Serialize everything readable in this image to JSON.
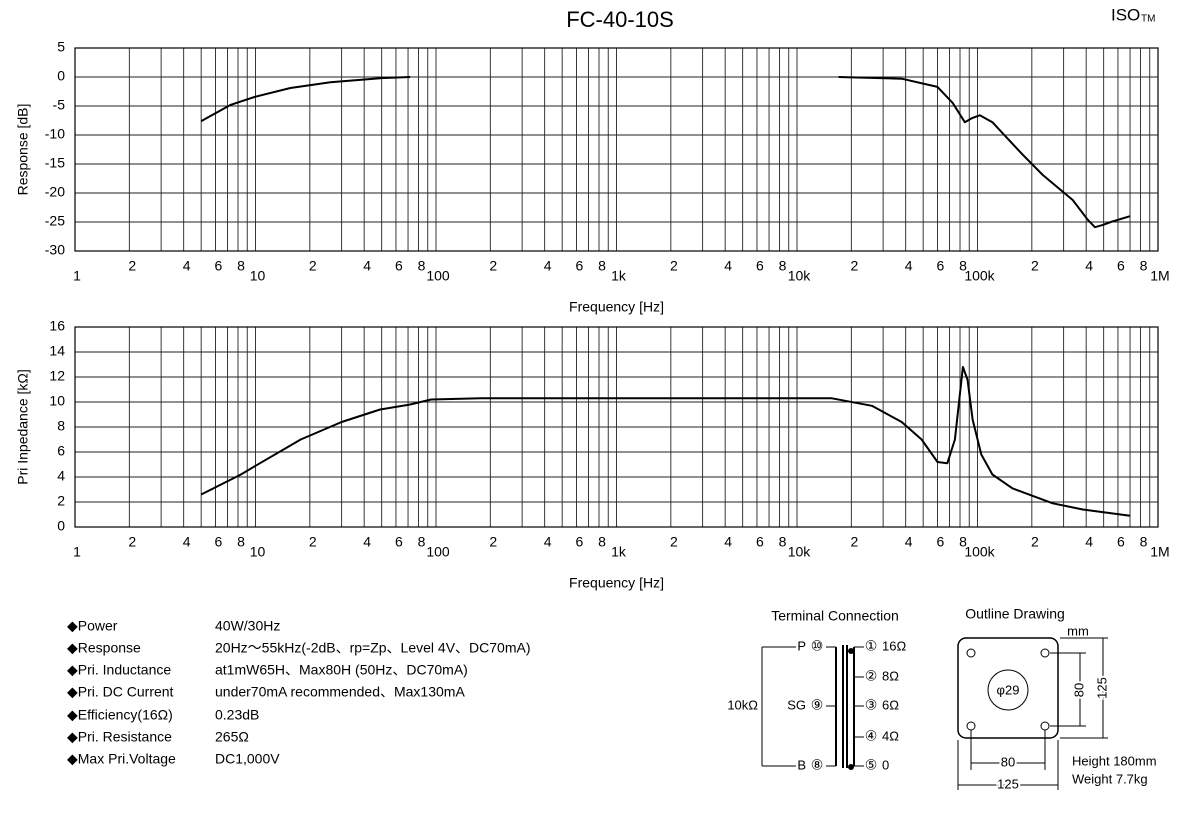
{
  "title": "FC-40-10S",
  "brand": "ISO",
  "brand_mark": "TM",
  "chart_data": [
    {
      "type": "line",
      "xlabel": "Frequency [Hz]",
      "ylabel": "Response [dB]",
      "xlog": true,
      "grid": true,
      "minor_grid": true,
      "color": "#000000",
      "xlim": [
        1,
        1000000
      ],
      "ylim": [
        -30,
        5
      ],
      "yticks": [
        -30,
        -25,
        -20,
        -15,
        -10,
        -5,
        0,
        5
      ],
      "xticks": [
        1,
        2,
        4,
        6,
        8,
        10,
        {
          "value": 20,
          "label": "2"
        },
        {
          "value": 40,
          "label": "4"
        },
        {
          "value": 60,
          "label": "6"
        },
        {
          "value": 80,
          "label": "8"
        },
        100,
        {
          "value": 200,
          "label": "2"
        },
        {
          "value": 400,
          "label": "4"
        },
        {
          "value": 600,
          "label": "6"
        },
        {
          "value": 800,
          "label": "8"
        },
        {
          "value": 1000,
          "label": "1k"
        },
        {
          "value": 2000,
          "label": "2"
        },
        {
          "value": 4000,
          "label": "4"
        },
        {
          "value": 6000,
          "label": "6"
        },
        {
          "value": 8000,
          "label": "8"
        },
        {
          "value": 10000,
          "label": "10k"
        },
        {
          "value": 20000,
          "label": "2"
        },
        {
          "value": 40000,
          "label": "4"
        },
        {
          "value": 60000,
          "label": "6"
        },
        {
          "value": 80000,
          "label": "8"
        },
        {
          "value": 100000,
          "label": "100k"
        },
        {
          "value": 200000,
          "label": "2"
        },
        {
          "value": 400000,
          "label": "4"
        },
        {
          "value": 600000,
          "label": "6"
        },
        {
          "value": 800000,
          "label": "8"
        },
        {
          "value": 1000000,
          "label": "1M"
        }
      ],
      "x": [
        5,
        7.3,
        10,
        15.6,
        26,
        49,
        72,
        1000,
        17000,
        38000,
        60000,
        73000,
        85000,
        93000,
        103000,
        121000,
        138000,
        178000,
        230000,
        337000,
        408000,
        447000,
        495000,
        548000,
        700000
      ],
      "values": [
        -7.6,
        -4.8,
        -3.4,
        -1.9,
        -0.9,
        -0.2,
        0,
        null,
        0,
        -0.3,
        -1.7,
        -4.5,
        -7.8,
        -7.1,
        -6.6,
        -7.8,
        -9.7,
        -13.4,
        -16.9,
        -21.2,
        -24.6,
        -25.9,
        -25.5,
        -25.0,
        -24.0
      ]
    },
    {
      "type": "line",
      "xlabel": "Frequency [Hz]",
      "ylabel": "Pri Inpedance [kΩ]",
      "xlog": true,
      "grid": true,
      "minor_grid": true,
      "color": "#000000",
      "xlim": [
        1,
        1000000
      ],
      "ylim": [
        0,
        16
      ],
      "yticks": [
        0,
        2,
        4,
        6,
        8,
        10,
        12,
        14,
        16
      ],
      "xticks": [
        1,
        2,
        4,
        6,
        8,
        10,
        {
          "value": 20,
          "label": "2"
        },
        {
          "value": 40,
          "label": "4"
        },
        {
          "value": 60,
          "label": "6"
        },
        {
          "value": 80,
          "label": "8"
        },
        100,
        {
          "value": 200,
          "label": "2"
        },
        {
          "value": 400,
          "label": "4"
        },
        {
          "value": 600,
          "label": "6"
        },
        {
          "value": 800,
          "label": "8"
        },
        {
          "value": 1000,
          "label": "1k"
        },
        {
          "value": 2000,
          "label": "2"
        },
        {
          "value": 4000,
          "label": "4"
        },
        {
          "value": 6000,
          "label": "6"
        },
        {
          "value": 8000,
          "label": "8"
        },
        {
          "value": 10000,
          "label": "10k"
        },
        {
          "value": 20000,
          "label": "2"
        },
        {
          "value": 40000,
          "label": "4"
        },
        {
          "value": 60000,
          "label": "6"
        },
        {
          "value": 80000,
          "label": "8"
        },
        {
          "value": 100000,
          "label": "100k"
        },
        {
          "value": 200000,
          "label": "2"
        },
        {
          "value": 400000,
          "label": "4"
        },
        {
          "value": 600000,
          "label": "6"
        },
        {
          "value": 800000,
          "label": "8"
        },
        {
          "value": 1000000,
          "label": "1M"
        }
      ],
      "x": [
        5,
        8.3,
        10,
        17.8,
        30,
        49,
        72,
        94,
        178,
        15600,
        26000,
        38000,
        49000,
        60000,
        68000,
        75000,
        83000,
        88000,
        94000,
        105000,
        121000,
        156000,
        261000,
        383000,
        700000
      ],
      "values": [
        2.6,
        4.2,
        4.9,
        7.0,
        8.4,
        9.4,
        9.8,
        10.2,
        10.3,
        10.3,
        9.7,
        8.4,
        7.0,
        5.2,
        5.1,
        7.0,
        12.8,
        11.8,
        8.6,
        5.8,
        4.2,
        3.1,
        1.9,
        1.4,
        0.9
      ]
    }
  ],
  "specs": [
    [
      "◆Power",
      "40W/30Hz"
    ],
    [
      "◆Response",
      "20Hz～55kHz(-2dB、rp=Zp、Level 4V、DC70mA)"
    ],
    [
      "◆Pri. Inductance",
      "at1mW65H、Max80H (50Hz、DC70mA)"
    ],
    [
      "◆Pri. DC Current",
      "under70mA recommended、Max130mA"
    ],
    [
      "◆Efficiency(16Ω)",
      "0.23dB"
    ],
    [
      "◆Pri. Resistance",
      "265Ω"
    ],
    [
      "◆Max Pri.Voltage",
      "DC1,000V"
    ]
  ],
  "terminal": {
    "title": "Terminal Connection",
    "impedance": "10kΩ",
    "left": [
      {
        "label": "P",
        "pin": "⑩"
      },
      {
        "label": "SG",
        "pin": "⑨"
      },
      {
        "label": "B",
        "pin": "⑧"
      }
    ],
    "right": [
      {
        "pin": "①",
        "label": "16Ω"
      },
      {
        "pin": "②",
        "label": "8Ω"
      },
      {
        "pin": "③",
        "label": "6Ω"
      },
      {
        "pin": "④",
        "label": "4Ω"
      },
      {
        "pin": "⑤",
        "label": "0"
      }
    ]
  },
  "outline": {
    "title": "Outline Drawing",
    "unit": "mm",
    "hole": "φ29",
    "inner_v": "80",
    "outer_v": "125",
    "inner_h": "80",
    "outer_h": "125",
    "height": "Height 180mm",
    "weight": "Weight 7.7kg"
  }
}
